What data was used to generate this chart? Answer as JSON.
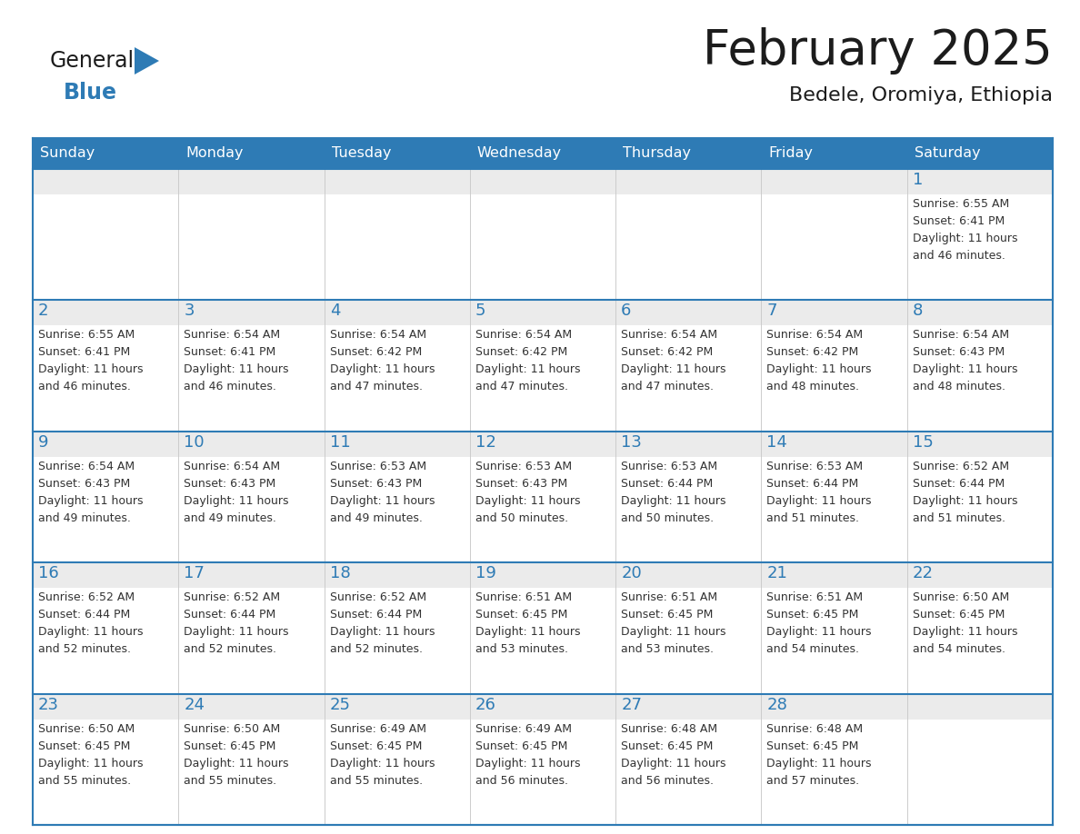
{
  "title": "February 2025",
  "subtitle": "Bedele, Oromiya, Ethiopia",
  "header_bg": "#2E7BB5",
  "header_text_color": "#FFFFFF",
  "cell_border_color": "#2E7BB5",
  "day_number_color": "#2E7BB5",
  "info_text_color": "#333333",
  "background_color": "#FFFFFF",
  "cell_top_bg": "#EBEBEB",
  "days_of_week": [
    "Sunday",
    "Monday",
    "Tuesday",
    "Wednesday",
    "Thursday",
    "Friday",
    "Saturday"
  ],
  "weeks": [
    [
      {
        "day": "",
        "sunrise": "",
        "sunset": "",
        "daylight_min": ""
      },
      {
        "day": "",
        "sunrise": "",
        "sunset": "",
        "daylight_min": ""
      },
      {
        "day": "",
        "sunrise": "",
        "sunset": "",
        "daylight_min": ""
      },
      {
        "day": "",
        "sunrise": "",
        "sunset": "",
        "daylight_min": ""
      },
      {
        "day": "",
        "sunrise": "",
        "sunset": "",
        "daylight_min": ""
      },
      {
        "day": "",
        "sunrise": "",
        "sunset": "",
        "daylight_min": ""
      },
      {
        "day": "1",
        "sunrise": "6:55 AM",
        "sunset": "6:41 PM",
        "daylight_min": "46 minutes."
      }
    ],
    [
      {
        "day": "2",
        "sunrise": "6:55 AM",
        "sunset": "6:41 PM",
        "daylight_min": "46 minutes."
      },
      {
        "day": "3",
        "sunrise": "6:54 AM",
        "sunset": "6:41 PM",
        "daylight_min": "46 minutes."
      },
      {
        "day": "4",
        "sunrise": "6:54 AM",
        "sunset": "6:42 PM",
        "daylight_min": "47 minutes."
      },
      {
        "day": "5",
        "sunrise": "6:54 AM",
        "sunset": "6:42 PM",
        "daylight_min": "47 minutes."
      },
      {
        "day": "6",
        "sunrise": "6:54 AM",
        "sunset": "6:42 PM",
        "daylight_min": "47 minutes."
      },
      {
        "day": "7",
        "sunrise": "6:54 AM",
        "sunset": "6:42 PM",
        "daylight_min": "48 minutes."
      },
      {
        "day": "8",
        "sunrise": "6:54 AM",
        "sunset": "6:43 PM",
        "daylight_min": "48 minutes."
      }
    ],
    [
      {
        "day": "9",
        "sunrise": "6:54 AM",
        "sunset": "6:43 PM",
        "daylight_min": "49 minutes."
      },
      {
        "day": "10",
        "sunrise": "6:54 AM",
        "sunset": "6:43 PM",
        "daylight_min": "49 minutes."
      },
      {
        "day": "11",
        "sunrise": "6:53 AM",
        "sunset": "6:43 PM",
        "daylight_min": "49 minutes."
      },
      {
        "day": "12",
        "sunrise": "6:53 AM",
        "sunset": "6:43 PM",
        "daylight_min": "50 minutes."
      },
      {
        "day": "13",
        "sunrise": "6:53 AM",
        "sunset": "6:44 PM",
        "daylight_min": "50 minutes."
      },
      {
        "day": "14",
        "sunrise": "6:53 AM",
        "sunset": "6:44 PM",
        "daylight_min": "51 minutes."
      },
      {
        "day": "15",
        "sunrise": "6:52 AM",
        "sunset": "6:44 PM",
        "daylight_min": "51 minutes."
      }
    ],
    [
      {
        "day": "16",
        "sunrise": "6:52 AM",
        "sunset": "6:44 PM",
        "daylight_min": "52 minutes."
      },
      {
        "day": "17",
        "sunrise": "6:52 AM",
        "sunset": "6:44 PM",
        "daylight_min": "52 minutes."
      },
      {
        "day": "18",
        "sunrise": "6:52 AM",
        "sunset": "6:44 PM",
        "daylight_min": "52 minutes."
      },
      {
        "day": "19",
        "sunrise": "6:51 AM",
        "sunset": "6:45 PM",
        "daylight_min": "53 minutes."
      },
      {
        "day": "20",
        "sunrise": "6:51 AM",
        "sunset": "6:45 PM",
        "daylight_min": "53 minutes."
      },
      {
        "day": "21",
        "sunrise": "6:51 AM",
        "sunset": "6:45 PM",
        "daylight_min": "54 minutes."
      },
      {
        "day": "22",
        "sunrise": "6:50 AM",
        "sunset": "6:45 PM",
        "daylight_min": "54 minutes."
      }
    ],
    [
      {
        "day": "23",
        "sunrise": "6:50 AM",
        "sunset": "6:45 PM",
        "daylight_min": "55 minutes."
      },
      {
        "day": "24",
        "sunrise": "6:50 AM",
        "sunset": "6:45 PM",
        "daylight_min": "55 minutes."
      },
      {
        "day": "25",
        "sunrise": "6:49 AM",
        "sunset": "6:45 PM",
        "daylight_min": "55 minutes."
      },
      {
        "day": "26",
        "sunrise": "6:49 AM",
        "sunset": "6:45 PM",
        "daylight_min": "56 minutes."
      },
      {
        "day": "27",
        "sunrise": "6:48 AM",
        "sunset": "6:45 PM",
        "daylight_min": "56 minutes."
      },
      {
        "day": "28",
        "sunrise": "6:48 AM",
        "sunset": "6:45 PM",
        "daylight_min": "57 minutes."
      },
      {
        "day": "",
        "sunrise": "",
        "sunset": "",
        "daylight_min": ""
      }
    ]
  ]
}
